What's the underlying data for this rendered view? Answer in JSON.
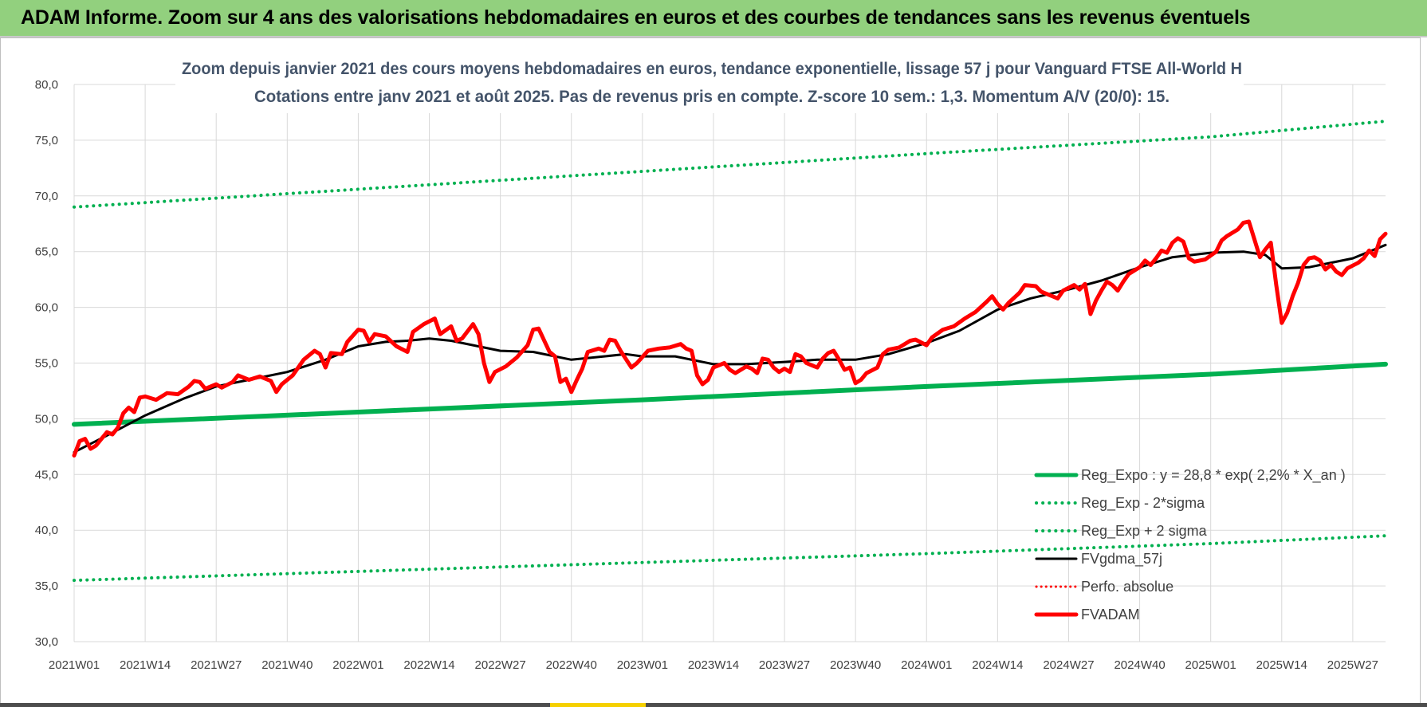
{
  "header": {
    "title": "ADAM Informe. Zoom sur 4 ans des valorisations hebdomadaires en euros et des courbes de tendances sans les revenus éventuels"
  },
  "colors": {
    "banner": "#92d07e",
    "reg_expo": "#00b050",
    "sigma": "#00b050",
    "fvgdma": "#000000",
    "perfo": "#ff0000",
    "fvadam": "#ff0000",
    "title_text": "#44546a"
  },
  "chart_data": {
    "type": "line",
    "title": "Zoom depuis janvier 2021 des cours moyens hebdomadaires en euros, tendance exponentielle, lissage 57 j pour Vanguard FTSE All-World H",
    "subtitle": "Cotations entre janv 2021 et août 2025.  Pas de revenus pris en compte. Z-score 10 sem.: 1,3. Momentum A/V (20/0): 15.",
    "xlabel": "",
    "ylabel": "",
    "ylim": [
      30,
      80
    ],
    "grid": true,
    "legend_position": "bottom-right",
    "y_ticks": [
      "80,0",
      "75,0",
      "70,0",
      "65,0",
      "60,0",
      "55,0",
      "50,0",
      "45,0",
      "40,0",
      "35,0",
      "30,0"
    ],
    "x_ticks": [
      "2021W01",
      "2021W14",
      "2021W27",
      "2021W40",
      "2022W01",
      "2022W14",
      "2022W27",
      "2022W40",
      "2023W01",
      "2023W14",
      "2023W27",
      "2023W40",
      "2024W01",
      "2024W14",
      "2024W27",
      "2024W40",
      "2025W01",
      "2025W14",
      "2025W27"
    ],
    "x_week_range": [
      "2021W01",
      "2025W33"
    ],
    "series": [
      {
        "name": "Reg_Expo : y = 28,8 * exp( 2,2% *  X_an )",
        "style": "solid-thick",
        "points": [
          [
            "2021W01",
            49.5
          ],
          [
            "2022W01",
            50.6
          ],
          [
            "2023W01",
            51.7
          ],
          [
            "2024W01",
            52.9
          ],
          [
            "2025W01",
            54.0
          ],
          [
            "2025W33",
            54.9
          ]
        ]
      },
      {
        "name": "Reg_Exp - 2*sigma",
        "style": "dotted",
        "points": [
          [
            "2021W01",
            35.5
          ],
          [
            "2022W01",
            36.3
          ],
          [
            "2023W01",
            37.1
          ],
          [
            "2024W01",
            37.9
          ],
          [
            "2025W01",
            38.8
          ],
          [
            "2025W33",
            39.5
          ]
        ]
      },
      {
        "name": "Reg_Exp + 2 sigma",
        "style": "dotted",
        "points": [
          [
            "2021W01",
            69.0
          ],
          [
            "2022W01",
            70.6
          ],
          [
            "2023W01",
            72.2
          ],
          [
            "2024W01",
            73.8
          ],
          [
            "2025W01",
            75.3
          ],
          [
            "2025W33",
            76.7
          ]
        ]
      },
      {
        "name": "FVgdma_57j",
        "style": "solid",
        "points": [
          [
            "2021W01",
            47.0
          ],
          [
            "2021W07",
            48.5
          ],
          [
            "2021W14",
            50.3
          ],
          [
            "2021W21",
            51.8
          ],
          [
            "2021W27",
            52.9
          ],
          [
            "2021W34",
            53.6
          ],
          [
            "2021W40",
            54.2
          ],
          [
            "2021W47",
            55.3
          ],
          [
            "2022W01",
            56.5
          ],
          [
            "2022W06",
            56.9
          ],
          [
            "2022W10",
            57.0
          ],
          [
            "2022W14",
            57.2
          ],
          [
            "2022W18",
            57.0
          ],
          [
            "2022W22",
            56.6
          ],
          [
            "2022W27",
            56.1
          ],
          [
            "2022W33",
            56.0
          ],
          [
            "2022W40",
            55.3
          ],
          [
            "2022W46",
            55.6
          ],
          [
            "2022W50",
            55.8
          ],
          [
            "2023W01",
            55.6
          ],
          [
            "2023W07",
            55.6
          ],
          [
            "2023W14",
            54.9
          ],
          [
            "2023W20",
            54.9
          ],
          [
            "2023W27",
            55.1
          ],
          [
            "2023W33",
            55.3
          ],
          [
            "2023W40",
            55.3
          ],
          [
            "2023W46",
            55.8
          ],
          [
            "2024W01",
            56.8
          ],
          [
            "2024W07",
            57.9
          ],
          [
            "2024W14",
            59.8
          ],
          [
            "2024W20",
            60.8
          ],
          [
            "2024W27",
            61.6
          ],
          [
            "2024W33",
            62.4
          ],
          [
            "2024W40",
            63.6
          ],
          [
            "2024W46",
            64.5
          ],
          [
            "2025W01",
            64.9
          ],
          [
            "2025W07",
            65.0
          ],
          [
            "2025W11",
            64.7
          ],
          [
            "2025W14",
            63.5
          ],
          [
            "2025W19",
            63.6
          ],
          [
            "2025W27",
            64.4
          ],
          [
            "2025W33",
            65.6
          ]
        ]
      },
      {
        "name": "Perfo. absolue",
        "style": "dotted",
        "points": []
      },
      {
        "name": "FVADAM",
        "style": "solid-thick",
        "points": [
          [
            "2021W01",
            46.7
          ],
          [
            "2021W02",
            48.0
          ],
          [
            "2021W03",
            48.2
          ],
          [
            "2021W04",
            47.3
          ],
          [
            "2021W05",
            47.6
          ],
          [
            "2021W07",
            48.8
          ],
          [
            "2021W08",
            48.6
          ],
          [
            "2021W09",
            49.2
          ],
          [
            "2021W10",
            50.5
          ],
          [
            "2021W11",
            51.0
          ],
          [
            "2021W12",
            50.6
          ],
          [
            "2021W13",
            51.9
          ],
          [
            "2021W14",
            52.0
          ],
          [
            "2021W16",
            51.7
          ],
          [
            "2021W18",
            52.3
          ],
          [
            "2021W20",
            52.2
          ],
          [
            "2021W22",
            52.9
          ],
          [
            "2021W23",
            53.4
          ],
          [
            "2021W24",
            53.3
          ],
          [
            "2021W25",
            52.7
          ],
          [
            "2021W27",
            53.1
          ],
          [
            "2021W28",
            52.8
          ],
          [
            "2021W30",
            53.3
          ],
          [
            "2021W31",
            53.9
          ],
          [
            "2021W33",
            53.5
          ],
          [
            "2021W35",
            53.8
          ],
          [
            "2021W37",
            53.4
          ],
          [
            "2021W38",
            52.4
          ],
          [
            "2021W39",
            53.1
          ],
          [
            "2021W41",
            53.9
          ],
          [
            "2021W43",
            55.3
          ],
          [
            "2021W45",
            56.1
          ],
          [
            "2021W46",
            55.8
          ],
          [
            "2021W47",
            54.6
          ],
          [
            "2021W48",
            55.9
          ],
          [
            "2021W50",
            55.8
          ],
          [
            "2021W51",
            56.9
          ],
          [
            "2022W01",
            58.0
          ],
          [
            "2022W02",
            57.9
          ],
          [
            "2022W03",
            56.9
          ],
          [
            "2022W04",
            57.6
          ],
          [
            "2022W06",
            57.4
          ],
          [
            "2022W08",
            56.5
          ],
          [
            "2022W10",
            56.0
          ],
          [
            "2022W11",
            57.8
          ],
          [
            "2022W13",
            58.5
          ],
          [
            "2022W15",
            59.0
          ],
          [
            "2022W16",
            57.6
          ],
          [
            "2022W18",
            58.3
          ],
          [
            "2022W19",
            57.0
          ],
          [
            "2022W20",
            57.2
          ],
          [
            "2022W22",
            58.5
          ],
          [
            "2022W23",
            57.6
          ],
          [
            "2022W24",
            55.0
          ],
          [
            "2022W25",
            53.3
          ],
          [
            "2022W26",
            54.2
          ],
          [
            "2022W28",
            54.7
          ],
          [
            "2022W30",
            55.5
          ],
          [
            "2022W32",
            56.6
          ],
          [
            "2022W33",
            58.0
          ],
          [
            "2022W34",
            58.1
          ],
          [
            "2022W36",
            56.0
          ],
          [
            "2022W37",
            55.6
          ],
          [
            "2022W38",
            53.3
          ],
          [
            "2022W39",
            53.6
          ],
          [
            "2022W40",
            52.4
          ],
          [
            "2022W41",
            53.5
          ],
          [
            "2022W42",
            54.5
          ],
          [
            "2022W43",
            56.0
          ],
          [
            "2022W45",
            56.3
          ],
          [
            "2022W46",
            56.1
          ],
          [
            "2022W47",
            57.1
          ],
          [
            "2022W48",
            57.0
          ],
          [
            "2022W49",
            56.1
          ],
          [
            "2022W51",
            54.6
          ],
          [
            "2022W52",
            55.0
          ],
          [
            "2023W02",
            56.1
          ],
          [
            "2023W04",
            56.3
          ],
          [
            "2023W06",
            56.4
          ],
          [
            "2023W08",
            56.7
          ],
          [
            "2023W09",
            56.3
          ],
          [
            "2023W10",
            56.1
          ],
          [
            "2023W11",
            53.9
          ],
          [
            "2023W12",
            53.1
          ],
          [
            "2023W13",
            53.5
          ],
          [
            "2023W14",
            54.6
          ],
          [
            "2023W16",
            55.0
          ],
          [
            "2023W17",
            54.4
          ],
          [
            "2023W18",
            54.1
          ],
          [
            "2023W20",
            54.7
          ],
          [
            "2023W21",
            54.5
          ],
          [
            "2023W22",
            54.1
          ],
          [
            "2023W23",
            55.4
          ],
          [
            "2023W24",
            55.3
          ],
          [
            "2023W25",
            54.6
          ],
          [
            "2023W26",
            54.2
          ],
          [
            "2023W27",
            54.5
          ],
          [
            "2023W28",
            54.2
          ],
          [
            "2023W29",
            55.8
          ],
          [
            "2023W30",
            55.6
          ],
          [
            "2023W31",
            55.0
          ],
          [
            "2023W32",
            54.8
          ],
          [
            "2023W33",
            54.6
          ],
          [
            "2023W34",
            55.4
          ],
          [
            "2023W35",
            55.9
          ],
          [
            "2023W36",
            56.1
          ],
          [
            "2023W37",
            55.3
          ],
          [
            "2023W38",
            54.4
          ],
          [
            "2023W39",
            54.6
          ],
          [
            "2023W40",
            53.2
          ],
          [
            "2023W41",
            53.5
          ],
          [
            "2023W42",
            54.1
          ],
          [
            "2023W44",
            54.6
          ],
          [
            "2023W45",
            55.8
          ],
          [
            "2023W46",
            56.2
          ],
          [
            "2023W48",
            56.4
          ],
          [
            "2023W50",
            57.0
          ],
          [
            "2023W51",
            57.1
          ],
          [
            "2024W01",
            56.6
          ],
          [
            "2024W02",
            57.3
          ],
          [
            "2024W04",
            58.0
          ],
          [
            "2024W06",
            58.3
          ],
          [
            "2024W08",
            59.0
          ],
          [
            "2024W10",
            59.6
          ],
          [
            "2024W12",
            60.5
          ],
          [
            "2024W13",
            61.0
          ],
          [
            "2024W14",
            60.3
          ],
          [
            "2024W15",
            59.8
          ],
          [
            "2024W16",
            60.4
          ],
          [
            "2024W18",
            61.3
          ],
          [
            "2024W19",
            62.0
          ],
          [
            "2024W21",
            61.9
          ],
          [
            "2024W22",
            61.4
          ],
          [
            "2024W24",
            61.0
          ],
          [
            "2024W25",
            60.8
          ],
          [
            "2024W26",
            61.5
          ],
          [
            "2024W28",
            62.0
          ],
          [
            "2024W29",
            61.6
          ],
          [
            "2024W30",
            62.1
          ],
          [
            "2024W31",
            59.4
          ],
          [
            "2024W32",
            60.6
          ],
          [
            "2024W33",
            61.5
          ],
          [
            "2024W34",
            62.3
          ],
          [
            "2024W35",
            62.0
          ],
          [
            "2024W36",
            61.5
          ],
          [
            "2024W37",
            62.3
          ],
          [
            "2024W38",
            63.0
          ],
          [
            "2024W40",
            63.6
          ],
          [
            "2024W41",
            64.2
          ],
          [
            "2024W42",
            63.8
          ],
          [
            "2024W43",
            64.4
          ],
          [
            "2024W44",
            65.1
          ],
          [
            "2024W45",
            64.9
          ],
          [
            "2024W46",
            65.8
          ],
          [
            "2024W47",
            66.2
          ],
          [
            "2024W48",
            65.9
          ],
          [
            "2024W49",
            64.4
          ],
          [
            "2024W50",
            64.1
          ],
          [
            "2024W52",
            64.3
          ],
          [
            "2025W02",
            65.0
          ],
          [
            "2025W03",
            66.0
          ],
          [
            "2025W04",
            66.4
          ],
          [
            "2025W06",
            67.0
          ],
          [
            "2025W07",
            67.6
          ],
          [
            "2025W08",
            67.7
          ],
          [
            "2025W09",
            66.1
          ],
          [
            "2025W10",
            64.5
          ],
          [
            "2025W11",
            65.2
          ],
          [
            "2025W12",
            65.8
          ],
          [
            "2025W13",
            62.0
          ],
          [
            "2025W14",
            58.6
          ],
          [
            "2025W15",
            59.5
          ],
          [
            "2025W16",
            61.0
          ],
          [
            "2025W17",
            62.2
          ],
          [
            "2025W18",
            63.8
          ],
          [
            "2025W19",
            64.4
          ],
          [
            "2025W20",
            64.5
          ],
          [
            "2025W21",
            64.2
          ],
          [
            "2025W22",
            63.4
          ],
          [
            "2025W23",
            63.8
          ],
          [
            "2025W24",
            63.2
          ],
          [
            "2025W25",
            62.9
          ],
          [
            "2025W26",
            63.5
          ],
          [
            "2025W28",
            64.0
          ],
          [
            "2025W29",
            64.4
          ],
          [
            "2025W30",
            65.1
          ],
          [
            "2025W31",
            64.6
          ],
          [
            "2025W32",
            66.1
          ],
          [
            "2025W33",
            66.6
          ]
        ]
      }
    ]
  }
}
